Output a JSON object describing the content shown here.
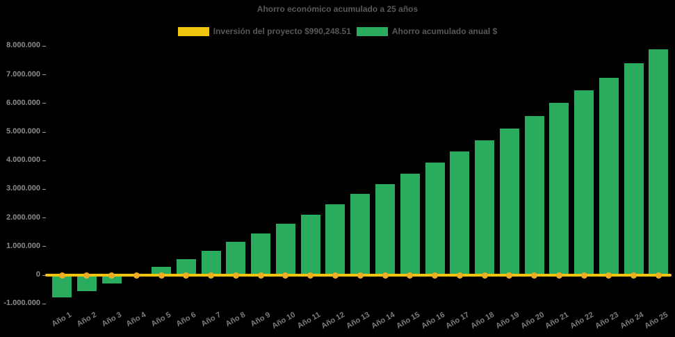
{
  "chart_data": {
    "type": "bar",
    "title": "Ahorro económico acumulado a 25 años",
    "background": "#000000",
    "legend_position": "top",
    "grid": false,
    "x_tick_rotation": 30,
    "ylim": [
      -1450000,
      8150000
    ],
    "yticks": [
      {
        "label": "8.000.000",
        "value": 8000000
      },
      {
        "label": "7.000.000",
        "value": 7000000
      },
      {
        "label": "6.000.000",
        "value": 6000000
      },
      {
        "label": "5.000.000",
        "value": 5000000
      },
      {
        "label": "4.000.000",
        "value": 4000000
      },
      {
        "label": "3.000.000",
        "value": 3000000
      },
      {
        "label": "2.000.000",
        "value": 2000000
      },
      {
        "label": "1.000.000",
        "value": 1000000
      },
      {
        "label": "0",
        "value": 0
      },
      {
        "label": "-1.000.000",
        "value": -1000000
      }
    ],
    "categories": [
      "Año 1",
      "Año 2",
      "Año 3",
      "Año 4",
      "Año 5",
      "Año 6",
      "Año 7",
      "Año 8",
      "Año 9",
      "Año 10",
      "Año 11",
      "Año 12",
      "Año 13",
      "Año 14",
      "Año 15",
      "Año 16",
      "Año 17",
      "Año 18",
      "Año 19",
      "Año 20",
      "Año 21",
      "Año 22",
      "Año 23",
      "Año 24",
      "Año 25"
    ],
    "series": [
      {
        "name": "Inversión del proyecto $990,248.51",
        "type": "line",
        "color": "#F1C40F",
        "marker_color": "#EFAD24",
        "note": "horizontal line with round markers drawn at the 0 level across all 25 years",
        "values": [
          0,
          0,
          0,
          0,
          0,
          0,
          0,
          0,
          0,
          0,
          0,
          0,
          0,
          0,
          0,
          0,
          0,
          0,
          0,
          0,
          0,
          0,
          0,
          0,
          0
        ]
      },
      {
        "name": "Ahorro acumulado anual $",
        "type": "bar",
        "color": "#2AAC5E",
        "values": [
          -780000,
          -560000,
          -290000,
          -30000,
          280000,
          570000,
          860000,
          1170000,
          1460000,
          1800000,
          2120000,
          2480000,
          2850000,
          3190000,
          3550000,
          3940000,
          4310000,
          4710000,
          5110000,
          5560000,
          6010000,
          6450000,
          6900000,
          7410000,
          7890000
        ]
      }
    ]
  }
}
